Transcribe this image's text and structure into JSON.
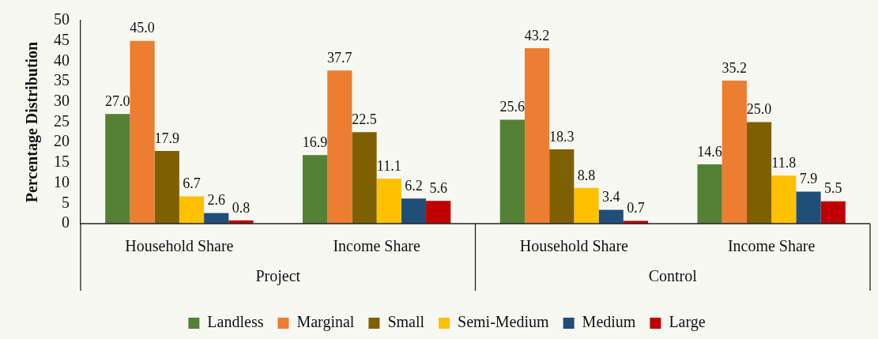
{
  "chart_data": {
    "type": "bar",
    "ylabel": "Percentage Distribution",
    "categories": [
      "Household Share",
      "Income Share",
      "Household Share",
      "Income Share"
    ],
    "annotations": [
      "Project",
      "Control"
    ],
    "series": [
      {
        "name": "Landless",
        "color": "#538135",
        "values": [
          27.0,
          16.9,
          25.6,
          14.6
        ],
        "value_labels": [
          "27.0",
          "16.9",
          "25.6",
          "14.6"
        ]
      },
      {
        "name": "Marginal",
        "color": "#ed7d31",
        "values": [
          45.0,
          37.7,
          43.2,
          35.2
        ],
        "value_labels": [
          "45.0",
          "37.7",
          "43.2",
          "35.2"
        ]
      },
      {
        "name": "Small",
        "color": "#7f6000",
        "values": [
          17.9,
          22.5,
          18.3,
          25.0
        ],
        "value_labels": [
          "17.9",
          "22.5",
          "18.3",
          "25.0"
        ]
      },
      {
        "name": "Semi-Medium",
        "color": "#ffc000",
        "values": [
          6.7,
          11.1,
          8.8,
          11.8
        ],
        "value_labels": [
          "6.7",
          "11.1",
          "8.8",
          "11.8"
        ]
      },
      {
        "name": "Medium",
        "color": "#1f4e79",
        "values": [
          2.6,
          6.2,
          3.4,
          7.9
        ],
        "value_labels": [
          "2.6",
          "6.2",
          "3.4",
          "7.9"
        ]
      },
      {
        "name": "Large",
        "color": "#c00000",
        "values": [
          0.8,
          5.6,
          0.7,
          5.5
        ],
        "value_labels": [
          "0.8",
          "5.6",
          "0.7",
          "5.5"
        ]
      }
    ],
    "ylim": [
      0,
      50
    ],
    "yticks": [
      0,
      5,
      10,
      15,
      20,
      25,
      30,
      35,
      40,
      45,
      50
    ],
    "grid": false,
    "legend": "bottom"
  }
}
